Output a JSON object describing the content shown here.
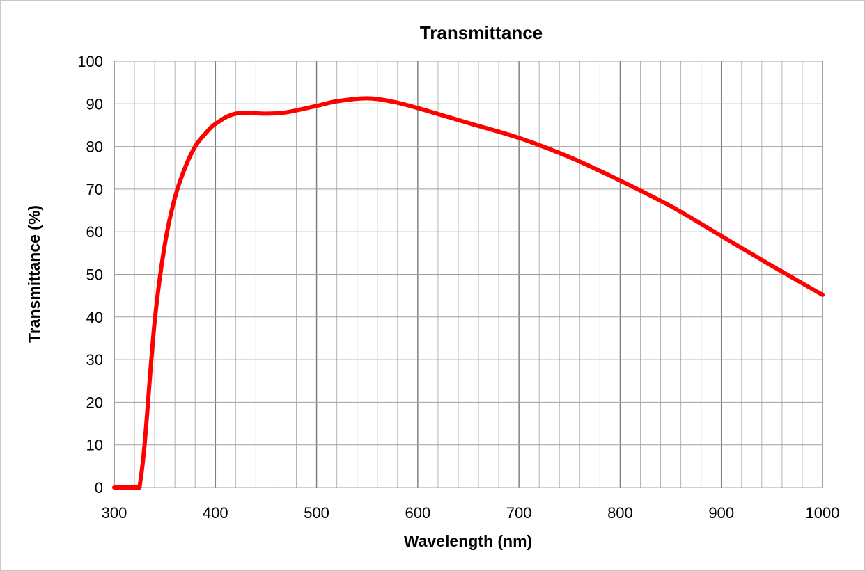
{
  "chart_data": {
    "type": "line",
    "title": "Transmittance",
    "xlabel": "Wavelength (nm)",
    "ylabel": "Transmittance (%)",
    "xlim": [
      300,
      1000
    ],
    "ylim": [
      0,
      100
    ],
    "x_major_step": 100,
    "x_minor_step": 20,
    "y_step": 10,
    "grid": true,
    "x_ticks": [
      "300",
      "400",
      "500",
      "600",
      "700",
      "800",
      "900",
      "1000"
    ],
    "y_ticks": [
      "0",
      "10",
      "20",
      "30",
      "40",
      "50",
      "60",
      "70",
      "80",
      "90",
      "100"
    ],
    "series": [
      {
        "name": "Transmittance",
        "color": "#ff0000",
        "x": [
          300,
          325,
          330,
          340,
          350,
          360,
          370,
          380,
          390,
          400,
          420,
          450,
          470,
          500,
          520,
          550,
          575,
          600,
          650,
          700,
          750,
          800,
          850,
          900,
          950,
          1000
        ],
        "y": [
          0,
          0,
          10,
          39,
          57,
          68,
          75,
          80,
          83,
          85.3,
          87.7,
          87.7,
          88,
          89.5,
          90.6,
          91.3,
          90.5,
          89,
          85.5,
          82,
          77.5,
          72,
          66,
          59,
          52,
          45.2
        ]
      }
    ]
  }
}
